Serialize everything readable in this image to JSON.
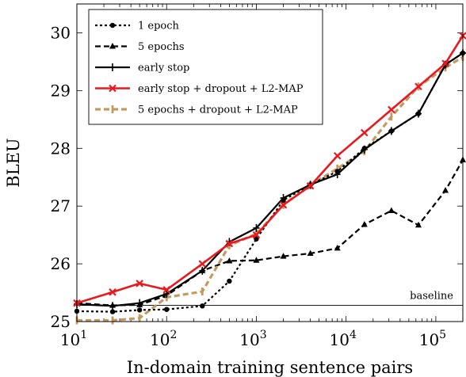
{
  "chart_data": {
    "type": "line",
    "xscale": "log",
    "xlabel": "In-domain training sentence pairs",
    "ylabel": "BLEU",
    "xlim": [
      10,
      200000
    ],
    "ylim": [
      25,
      30.5
    ],
    "x_ticks": [
      10,
      100,
      1000,
      10000,
      100000
    ],
    "x_tick_labels": [
      {
        "base": "10",
        "exp": "1"
      },
      {
        "base": "10",
        "exp": "2"
      },
      {
        "base": "10",
        "exp": "3"
      },
      {
        "base": "10",
        "exp": "4"
      },
      {
        "base": "10",
        "exp": "5"
      }
    ],
    "y_ticks": [
      25,
      26,
      27,
      28,
      29,
      30
    ],
    "y_tick_labels": [
      "25",
      "26",
      "27",
      "28",
      "29",
      "30"
    ],
    "legend_position": "top-left",
    "baseline": {
      "label": "baseline",
      "value": 25.28
    },
    "x": [
      10,
      25,
      50,
      100,
      250,
      500,
      1000,
      2000,
      4000,
      8000,
      16000,
      32000,
      64000,
      128000,
      200000
    ],
    "series": [
      {
        "name": "1 epoch",
        "color": "#000000",
        "dash": "dotted",
        "marker": "circle",
        "values": [
          25.18,
          25.17,
          25.2,
          25.21,
          25.27,
          25.7,
          26.43,
          27.1,
          27.37,
          27.6,
          28.0,
          28.3,
          28.6,
          29.45,
          29.65
        ]
      },
      {
        "name": "5 epochs",
        "color": "#000000",
        "dash": "dashed",
        "marker": "triangle",
        "values": [
          25.32,
          25.28,
          25.29,
          25.45,
          25.88,
          26.05,
          26.06,
          26.13,
          26.18,
          26.27,
          26.68,
          26.92,
          26.67,
          27.27,
          27.8
        ]
      },
      {
        "name": "early stop",
        "color": "#000000",
        "dash": "solid",
        "marker": "plus",
        "values": [
          25.3,
          25.27,
          25.32,
          25.48,
          25.88,
          26.38,
          26.62,
          27.14,
          27.37,
          27.55,
          27.98,
          28.3,
          28.6,
          29.45,
          29.65
        ]
      },
      {
        "name": "early stop + dropout + L2-MAP",
        "color": "#e8191f",
        "dash": "solid",
        "marker": "cross",
        "values": [
          25.32,
          25.51,
          25.66,
          25.55,
          26.0,
          26.35,
          26.5,
          27.02,
          27.35,
          27.87,
          28.27,
          28.67,
          29.07,
          29.47,
          29.95
        ]
      },
      {
        "name": "5 epochs + dropout + L2-MAP",
        "color": "#c39a60",
        "dash": "dashed",
        "marker": "bar",
        "values": [
          25.02,
          25.02,
          25.06,
          25.42,
          25.52,
          26.32,
          26.52,
          27.02,
          27.36,
          27.65,
          27.95,
          28.55,
          29.07,
          29.4,
          29.58
        ]
      }
    ]
  }
}
